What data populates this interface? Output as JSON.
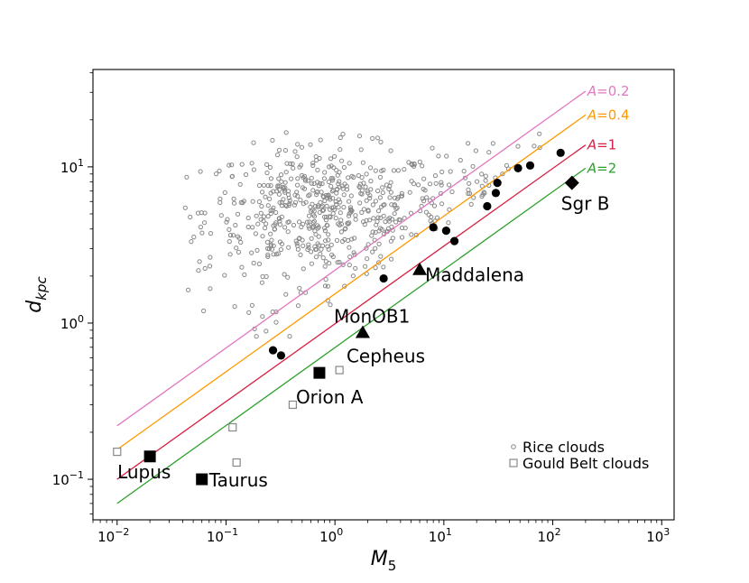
{
  "chart_data": {
    "type": "scatter",
    "title": "",
    "xlabel": "M",
    "xlabel_sub": "5",
    "ylabel": "d",
    "ylabel_sub": "kpc",
    "xscale": "log",
    "yscale": "log",
    "xlim": [
      0.006,
      1300
    ],
    "ylim": [
      0.055,
      42
    ],
    "x_ticks": [
      {
        "value": 0.01,
        "base": "10",
        "exp": "−2"
      },
      {
        "value": 0.1,
        "base": "10",
        "exp": "−1"
      },
      {
        "value": 1,
        "base": "10",
        "exp": "0"
      },
      {
        "value": 10,
        "base": "10",
        "exp": "1"
      },
      {
        "value": 100,
        "base": "10",
        "exp": "2"
      },
      {
        "value": 1000,
        "base": "10",
        "exp": "3"
      }
    ],
    "y_ticks": [
      {
        "value": 0.1,
        "base": "10",
        "exp": "−1"
      },
      {
        "value": 1,
        "base": "10",
        "exp": "0"
      },
      {
        "value": 10,
        "base": "10",
        "exp": "1"
      }
    ],
    "grid": false,
    "legend_position": "bottom-right",
    "legend": [
      {
        "label": "Rice clouds",
        "marker": "small-open-circle",
        "color": "#888888"
      },
      {
        "label": "Gould Belt clouds",
        "marker": "open-square",
        "color": "#888888"
      }
    ],
    "lines": [
      {
        "label_prefix": "A",
        "label_value": "=0.2",
        "color": "#e377c2",
        "points": [
          [
            0.01,
            0.22
          ],
          [
            200,
            30.5
          ]
        ],
        "label_at": [
          200,
          30.5
        ]
      },
      {
        "label_prefix": "A",
        "label_value": "=0.4",
        "color": "#ff9900",
        "points": [
          [
            0.01,
            0.155
          ],
          [
            200,
            21.5
          ]
        ],
        "label_at": [
          200,
          21.5
        ]
      },
      {
        "label_prefix": "A",
        "label_value": "=1",
        "color": "#d62043",
        "points": [
          [
            0.01,
            0.1
          ],
          [
            200,
            13.8
          ]
        ],
        "label_at": [
          200,
          13.8
        ]
      },
      {
        "label_prefix": "A",
        "label_value": "=2",
        "color": "#2ca02c",
        "points": [
          [
            0.01,
            0.07
          ],
          [
            200,
            9.8
          ]
        ],
        "label_at": [
          200,
          9.8
        ]
      }
    ],
    "named_points": [
      {
        "name": "Lupus",
        "x": 0.02,
        "y": 0.14,
        "marker": "square",
        "label_pos": "below-left"
      },
      {
        "name": "Taurus",
        "x": 0.06,
        "y": 0.1,
        "marker": "square",
        "label_pos": "right"
      },
      {
        "name": "Orion A",
        "x": 0.72,
        "y": 0.48,
        "marker": "square",
        "label_pos": "below"
      },
      {
        "name": "Cepheus",
        "x": 1.8,
        "y": 0.87,
        "marker": "triangle",
        "label_pos": "below"
      },
      {
        "name": "MonOB1",
        "x": 1.8,
        "y": 0.87,
        "marker": "triangle",
        "label_pos": "above"
      },
      {
        "name": "Maddalena",
        "x": 6.0,
        "y": 2.2,
        "marker": "triangle",
        "label_pos": "right"
      },
      {
        "name": "Sgr B",
        "x": 150,
        "y": 7.9,
        "marker": "diamond",
        "label_pos": "below"
      }
    ],
    "black_circles": [
      {
        "x": 0.27,
        "y": 0.67
      },
      {
        "x": 0.32,
        "y": 0.62
      },
      {
        "x": 2.8,
        "y": 1.93
      },
      {
        "x": 8.0,
        "y": 4.1
      },
      {
        "x": 10.5,
        "y": 3.9
      },
      {
        "x": 12.5,
        "y": 3.35
      },
      {
        "x": 25,
        "y": 5.6
      },
      {
        "x": 30,
        "y": 6.8
      },
      {
        "x": 31,
        "y": 7.9
      },
      {
        "x": 48,
        "y": 9.8
      },
      {
        "x": 62,
        "y": 10.2
      },
      {
        "x": 118,
        "y": 12.3
      }
    ],
    "gould_belt_clouds": [
      {
        "x": 0.01,
        "y": 0.15
      },
      {
        "x": 0.115,
        "y": 0.215
      },
      {
        "x": 0.125,
        "y": 0.128
      },
      {
        "x": 0.41,
        "y": 0.3
      },
      {
        "x": 1.1,
        "y": 0.5
      }
    ],
    "rice_clouds_rule": "small open gray circles; about 680 clouds, mostly between M5 = 0.03 and 100 and d = 2 to 16 kpc"
  }
}
